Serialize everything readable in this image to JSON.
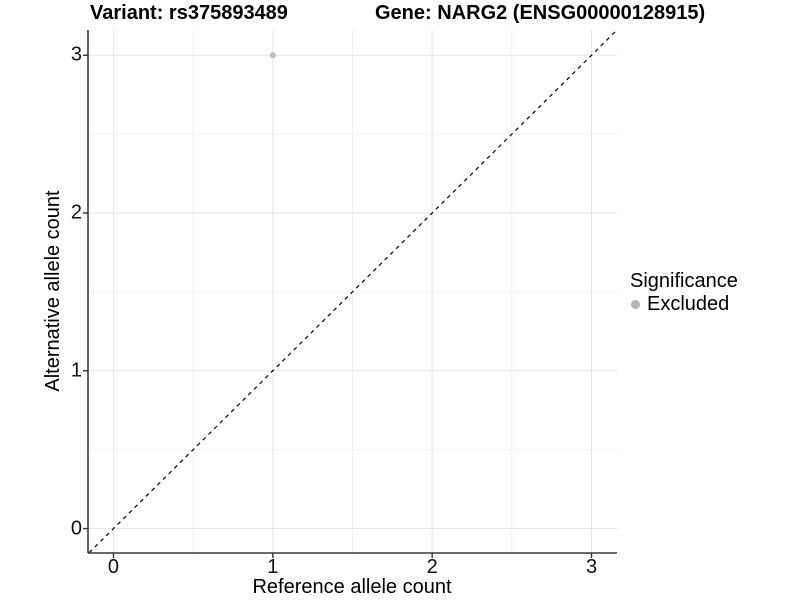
{
  "chart_data": {
    "type": "scatter",
    "title_left": "Variant: rs375893489",
    "title_right": "Gene: NARG2 (ENSG00000128915)",
    "xlabel": "Reference allele count",
    "ylabel": "Alternative allele count",
    "xlim": [
      -0.16,
      3.16
    ],
    "ylim": [
      -0.155,
      3.16
    ],
    "x_ticks": [
      "0",
      "1",
      "2",
      "3"
    ],
    "x_tick_values": [
      0,
      1,
      2,
      3
    ],
    "y_ticks": [
      "0",
      "1",
      "2",
      "3"
    ],
    "y_tick_values": [
      0,
      1,
      2,
      3
    ],
    "minor_gridlines": [
      0.5,
      1.5,
      2.5
    ],
    "grid": "on",
    "legend_position": "right",
    "series": [
      {
        "name": "Excluded",
        "color": "#bdbdbd",
        "points": [
          {
            "x": 1,
            "y": 3
          }
        ]
      }
    ],
    "reference_line": {
      "slope": 1,
      "intercept": 0,
      "style": "dashed",
      "color": "#141414"
    }
  },
  "legend": {
    "title": "Significance",
    "items": [
      {
        "label": "Excluded",
        "color": "#b5b5b5"
      }
    ]
  },
  "styles": {
    "axis_line_color": "#3a3a3a",
    "tick_mark_color": "#333333",
    "major_grid_color": "#e6e6e6",
    "minor_grid_color": "#f2f2f2",
    "background": "#ffffff"
  }
}
